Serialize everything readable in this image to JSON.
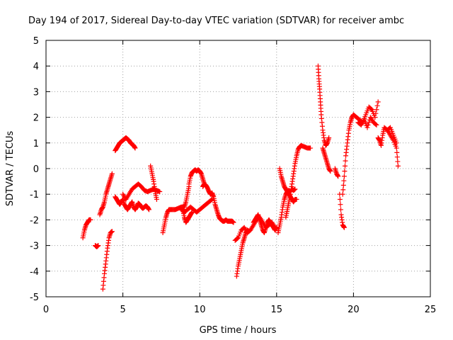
{
  "chart_data": {
    "type": "scatter",
    "title": "Day 194 of 2017, Sidereal Day-to-day VTEC variation (SDTVAR) for receiver ambc",
    "xlabel": "GPS time / hours",
    "ylabel": "SDTVAR / TECUs",
    "xlim": [
      0,
      25
    ],
    "ylim": [
      -5,
      5
    ],
    "xticks": [
      0,
      5,
      10,
      15,
      20,
      25
    ],
    "yticks": [
      -5,
      -4,
      -3,
      -2,
      -1,
      0,
      1,
      2,
      3,
      4,
      5
    ],
    "grid": true,
    "marker": "plus",
    "color": "#ff0000",
    "series": [
      {
        "x": [
          2.4,
          2.5,
          2.6,
          2.7,
          2.8,
          2.9
        ],
        "y": [
          -2.7,
          -2.4,
          -2.2,
          -2.1,
          -2.0,
          -2.0
        ]
      },
      {
        "x": [
          3.2,
          3.3,
          3.4
        ],
        "y": [
          -3.0,
          -3.05,
          -3.0
        ]
      },
      {
        "x": [
          3.7,
          3.8,
          3.9,
          4.0,
          4.1,
          4.2,
          4.3
        ],
        "y": [
          -4.7,
          -4.1,
          -3.6,
          -3.1,
          -2.7,
          -2.5,
          -2.45
        ]
      },
      {
        "x": [
          3.5,
          3.6,
          3.7,
          3.8,
          3.9,
          4.0,
          4.1,
          4.2,
          4.3
        ],
        "y": [
          -1.8,
          -1.6,
          -1.5,
          -1.3,
          -1.0,
          -0.8,
          -0.6,
          -0.4,
          -0.2
        ]
      },
      {
        "x": [
          4.5,
          4.6,
          4.7,
          4.8,
          4.9,
          5.0,
          5.1,
          5.2,
          5.3,
          5.4,
          5.5,
          5.6,
          5.7,
          5.8
        ],
        "y": [
          0.7,
          0.8,
          0.9,
          1.0,
          1.05,
          1.1,
          1.15,
          1.2,
          1.15,
          1.1,
          1.0,
          0.95,
          0.9,
          0.8
        ]
      },
      {
        "x": [
          4.5,
          4.6,
          4.7,
          4.8,
          4.9,
          5.0,
          5.1,
          5.2,
          5.3,
          5.4,
          5.5,
          5.6,
          5.7,
          5.8,
          5.9,
          6.0,
          6.1,
          6.2,
          6.3,
          6.4,
          6.5,
          6.6,
          6.7
        ],
        "y": [
          -1.1,
          -1.2,
          -1.3,
          -1.4,
          -1.3,
          -1.2,
          -1.4,
          -1.5,
          -1.6,
          -1.5,
          -1.4,
          -1.3,
          -1.5,
          -1.6,
          -1.5,
          -1.35,
          -1.4,
          -1.5,
          -1.55,
          -1.5,
          -1.45,
          -1.5,
          -1.6
        ]
      },
      {
        "x": [
          5.0,
          5.2,
          5.4,
          5.6,
          5.8,
          6.0,
          6.2,
          6.4,
          6.6,
          6.8,
          7.0,
          7.2,
          7.4
        ],
        "y": [
          -1.0,
          -1.2,
          -1.0,
          -0.8,
          -0.7,
          -0.6,
          -0.7,
          -0.85,
          -0.9,
          -0.85,
          -0.8,
          -0.85,
          -0.9
        ]
      },
      {
        "x": [
          6.8,
          6.9,
          7.0,
          7.1,
          7.2
        ],
        "y": [
          0.1,
          -0.2,
          -0.5,
          -0.9,
          -1.2
        ]
      },
      {
        "x": [
          7.6,
          7.7,
          7.8,
          7.9,
          8.0,
          8.2,
          8.4,
          8.6,
          8.8,
          9.0,
          9.1,
          9.2,
          9.3
        ],
        "y": [
          -2.5,
          -2.2,
          -1.9,
          -1.7,
          -1.6,
          -1.6,
          -1.6,
          -1.55,
          -1.5,
          -1.5,
          -1.3,
          -1.0,
          -0.7
        ]
      },
      {
        "x": [
          9.3,
          9.4,
          9.5,
          9.6,
          9.7,
          9.8,
          9.9,
          10.0,
          10.1,
          10.2,
          10.3
        ],
        "y": [
          -0.6,
          -0.3,
          -0.15,
          -0.1,
          -0.05,
          -0.1,
          -0.05,
          -0.1,
          -0.2,
          -0.4,
          -0.6
        ]
      },
      {
        "x": [
          8.8,
          9.0,
          9.2,
          9.4,
          9.6,
          9.8,
          10.0,
          10.2,
          10.4,
          10.6,
          10.8
        ],
        "y": [
          -1.6,
          -1.7,
          -1.6,
          -1.5,
          -1.6,
          -1.7,
          -1.6,
          -1.5,
          -1.4,
          -1.3,
          -1.2
        ]
      },
      {
        "x": [
          8.9,
          9.0,
          9.1,
          9.2,
          9.3,
          9.4,
          9.5
        ],
        "y": [
          -1.6,
          -1.9,
          -2.1,
          -2.0,
          -1.9,
          -1.8,
          -1.7
        ]
      },
      {
        "x": [
          10.2,
          10.3,
          10.4,
          10.5,
          10.6,
          10.7,
          10.8,
          10.9,
          11.0,
          11.1,
          11.2,
          11.3,
          11.4,
          11.5,
          11.6,
          11.7,
          11.8,
          11.9,
          12.0,
          12.1,
          12.2
        ],
        "y": [
          -0.7,
          -0.6,
          -0.65,
          -0.75,
          -0.9,
          -1.0,
          -0.95,
          -1.1,
          -1.4,
          -1.6,
          -1.8,
          -1.95,
          -2.0,
          -2.05,
          -2.05,
          -2.0,
          -2.05,
          -2.05,
          -2.05,
          -2.05,
          -2.1
        ]
      },
      {
        "x": [
          12.4,
          12.5,
          12.6,
          12.7,
          12.8,
          12.9,
          13.0,
          13.1,
          13.2
        ],
        "y": [
          -4.2,
          -3.8,
          -3.5,
          -3.2,
          -2.9,
          -2.7,
          -2.5,
          -2.4,
          -2.45
        ]
      },
      {
        "x": [
          12.3,
          12.5,
          12.7,
          12.9,
          13.1,
          13.3,
          13.5,
          13.7,
          13.9,
          14.1,
          14.3,
          14.5,
          14.7,
          14.9
        ],
        "y": [
          -2.8,
          -2.7,
          -2.4,
          -2.3,
          -2.5,
          -2.4,
          -2.2,
          -2.0,
          -1.9,
          -2.1,
          -2.3,
          -2.2,
          -2.1,
          -2.3
        ]
      },
      {
        "x": [
          13.5,
          13.6,
          13.7,
          13.8,
          13.9,
          14.0,
          14.1,
          14.2,
          14.3,
          14.4,
          14.5,
          14.6,
          14.7,
          14.8,
          14.9,
          15.0
        ],
        "y": [
          -2.1,
          -2.0,
          -1.9,
          -1.8,
          -2.0,
          -2.2,
          -2.4,
          -2.5,
          -2.3,
          -2.1,
          -2.0,
          -2.1,
          -2.2,
          -2.3,
          -2.4,
          -2.3
        ]
      },
      {
        "x": [
          15.1,
          15.2,
          15.3,
          15.4,
          15.5,
          15.6,
          15.7,
          15.8,
          15.9,
          16.0,
          16.1,
          16.2,
          16.3
        ],
        "y": [
          -2.5,
          -2.2,
          -1.9,
          -1.5,
          -1.2,
          -1.0,
          -0.9,
          -1.0,
          -1.1,
          -1.2,
          -1.3,
          -1.2,
          -1.2
        ]
      },
      {
        "x": [
          15.2,
          15.3,
          15.4,
          15.5,
          15.6,
          15.7,
          15.8,
          15.9,
          16.0,
          16.1,
          16.2
        ],
        "y": [
          0.0,
          -0.3,
          -0.5,
          -0.7,
          -0.8,
          -0.9,
          -0.85,
          -0.9,
          -0.8,
          -0.85,
          -0.8
        ]
      },
      {
        "x": [
          15.6,
          15.7,
          15.8,
          15.9,
          16.0,
          16.1,
          16.2,
          16.3,
          16.4,
          16.5,
          16.6,
          16.8,
          17.0,
          17.2
        ],
        "y": [
          -1.9,
          -1.6,
          -1.3,
          -1.0,
          -0.6,
          -0.2,
          0.2,
          0.5,
          0.75,
          0.85,
          0.9,
          0.85,
          0.8,
          0.8
        ]
      },
      {
        "x": [
          17.7,
          17.75,
          17.8,
          17.85,
          17.9,
          18.0,
          18.1,
          18.2,
          18.3,
          18.4
        ],
        "y": [
          4.0,
          3.5,
          3.1,
          2.6,
          2.1,
          1.5,
          1.1,
          0.9,
          1.0,
          1.2
        ]
      },
      {
        "x": [
          18.0,
          18.1,
          18.2,
          18.3,
          18.4,
          18.5
        ],
        "y": [
          0.8,
          0.6,
          0.4,
          0.2,
          0.0,
          -0.1
        ]
      },
      {
        "x": [
          18.8,
          18.9,
          19.0
        ],
        "y": [
          0.0,
          -0.2,
          -0.3
        ]
      },
      {
        "x": [
          19.1,
          19.2,
          19.3,
          19.4
        ],
        "y": [
          -1.0,
          -1.8,
          -2.2,
          -2.3
        ]
      },
      {
        "x": [
          19.3,
          19.4,
          19.5,
          19.6,
          19.7,
          19.8,
          19.9,
          20.0,
          20.2,
          20.4,
          20.6,
          20.8,
          21.0,
          21.2,
          21.4,
          21.6
        ],
        "y": [
          -1.0,
          -0.3,
          0.5,
          1.0,
          1.5,
          1.8,
          2.0,
          2.1,
          2.0,
          1.9,
          1.8,
          2.1,
          2.4,
          2.3,
          2.0,
          2.6
        ]
      },
      {
        "x": [
          20.3,
          20.5,
          20.7,
          20.9,
          21.1,
          21.3,
          21.5
        ],
        "y": [
          1.8,
          1.7,
          1.9,
          1.6,
          2.0,
          1.8,
          1.7
        ]
      },
      {
        "x": [
          21.6,
          21.7,
          21.8,
          21.9,
          22.0,
          22.2,
          22.4,
          22.6,
          22.8,
          22.9
        ],
        "y": [
          1.2,
          1.1,
          0.9,
          1.3,
          1.6,
          1.5,
          1.3,
          1.1,
          0.8,
          0.1
        ]
      },
      {
        "x": [
          22.2,
          22.4,
          22.6,
          22.8
        ],
        "y": [
          1.5,
          1.6,
          1.3,
          1.0
        ]
      }
    ]
  }
}
